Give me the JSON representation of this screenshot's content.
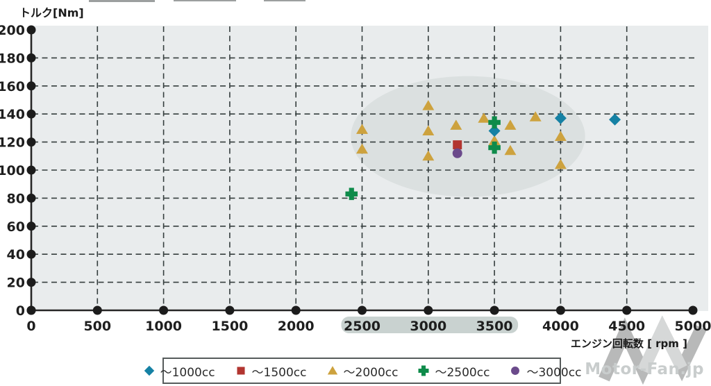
{
  "watermark": {
    "text": "Motor-Fan.jp"
  },
  "chart_data": {
    "type": "scatter",
    "title": "",
    "xlabel": "エンジン回転数 [ rpm ]",
    "ylabel": "トルク[Nm]",
    "xlim": [
      0,
      5000
    ],
    "ylim": [
      0,
      200
    ],
    "x_ticks": [
      0,
      500,
      1000,
      1500,
      2000,
      2500,
      3000,
      3500,
      4000,
      4500,
      5000
    ],
    "y_ticks": [
      0,
      20,
      40,
      60,
      80,
      100,
      120,
      140,
      160,
      180,
      200
    ],
    "grid": "dashed",
    "legend_position": "bottom",
    "plot_bg": "#e9eced",
    "grid_color": "#343d3d",
    "axis_color": "#262626",
    "axis_dot_color": "#1c1c1c",
    "tick_label_color": "#1e1e1e",
    "series": [
      {
        "name": "～1000cc",
        "marker": "diamond",
        "color": "#1581a4",
        "points": [
          [
            3500,
            128
          ],
          [
            4000,
            137
          ],
          [
            4410,
            136
          ]
        ]
      },
      {
        "name": "～1500cc",
        "marker": "square",
        "color": "#b23530",
        "points": [
          [
            3220,
            118
          ]
        ]
      },
      {
        "name": "～2000cc",
        "marker": "triangle",
        "color": "#cda23e",
        "points": [
          [
            2500,
            129
          ],
          [
            2500,
            115
          ],
          [
            3000,
            146
          ],
          [
            3000,
            128
          ],
          [
            3000,
            110
          ],
          [
            3210,
            132
          ],
          [
            3420,
            137
          ],
          [
            3500,
            121
          ],
          [
            3620,
            132
          ],
          [
            3620,
            114
          ],
          [
            3810,
            138
          ],
          [
            4000,
            124
          ],
          [
            4000,
            104
          ]
        ]
      },
      {
        "name": "～2500cc",
        "marker": "cross",
        "color": "#0e8b4a",
        "points": [
          [
            2420,
            83
          ],
          [
            3500,
            134
          ],
          [
            3500,
            116
          ]
        ]
      },
      {
        "name": "～3000cc",
        "marker": "circle",
        "color": "#6b4a8b",
        "points": [
          [
            3220,
            112
          ]
        ]
      }
    ],
    "annotations": {
      "cluster_ellipse": {
        "cx_rpm": 3300,
        "cy_nm": 124,
        "rx_rpm": 885,
        "ry_nm": 43,
        "color": "#dbe0e0"
      },
      "x_label_highlight": {
        "from_rpm": 2500,
        "to_rpm": 3500,
        "color": "#c9d2d0"
      }
    }
  }
}
